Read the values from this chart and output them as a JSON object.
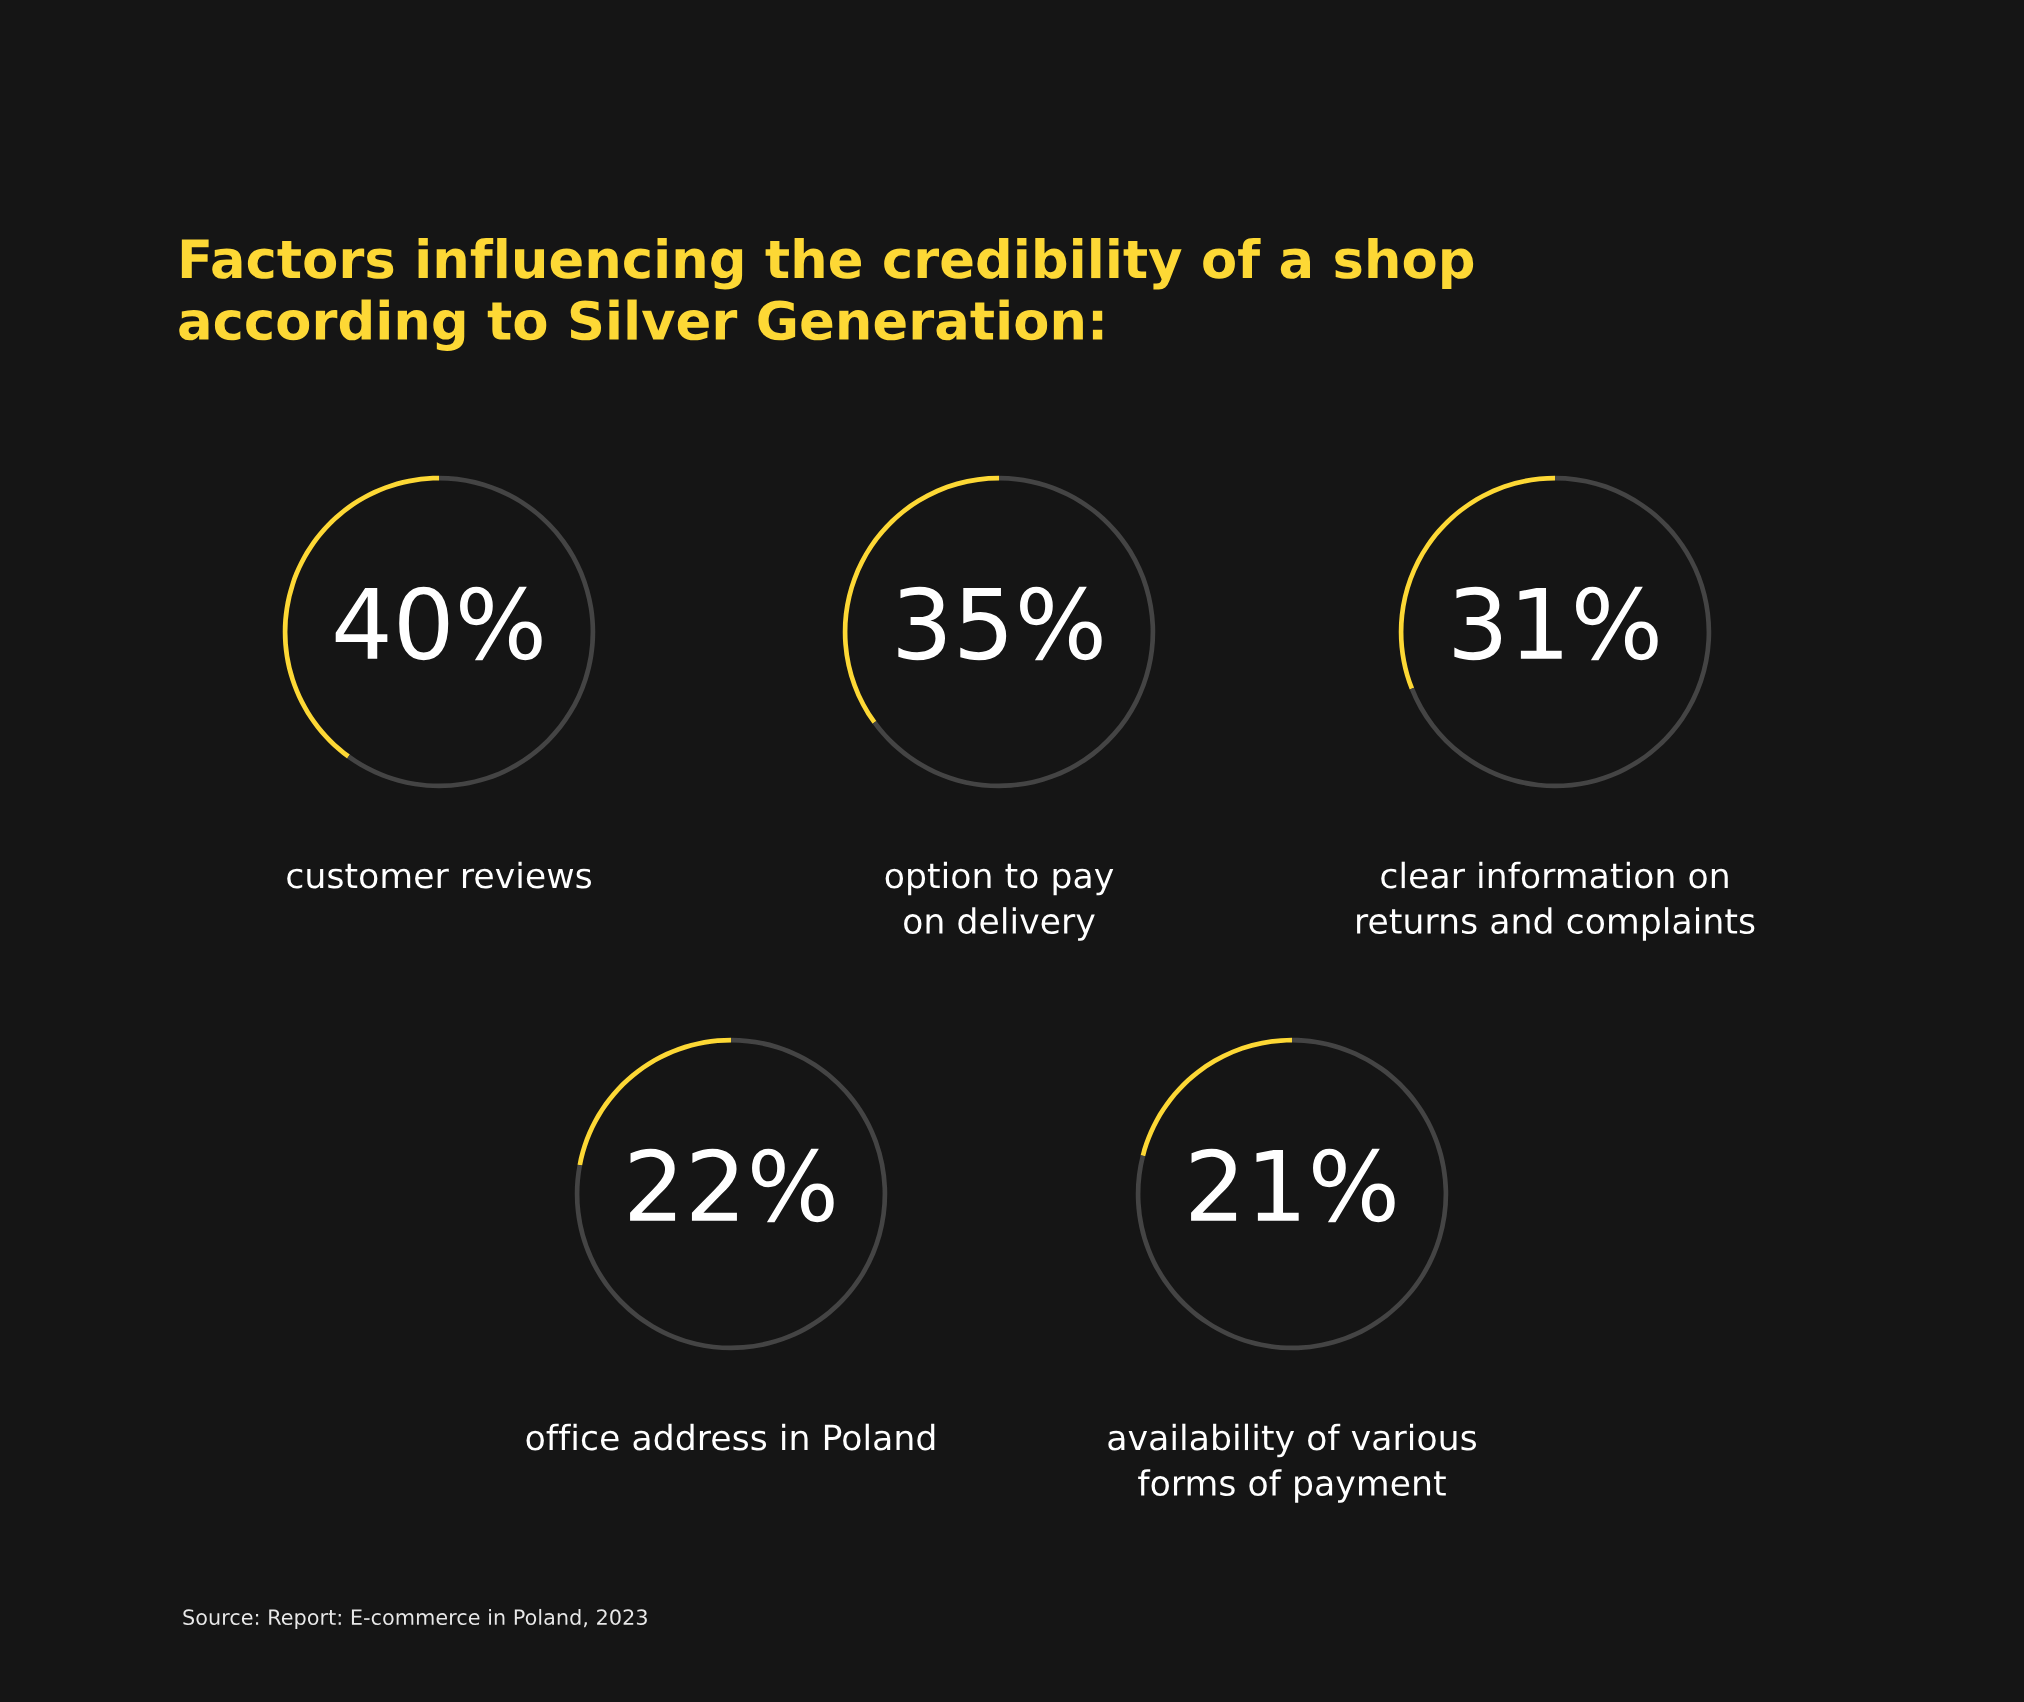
{
  "chart_data": [
    {
      "type": "other",
      "title": "Factors influencing the credibility of a shop\naccording to Silver Generation:",
      "annotations": [
        "Source: Report: E-commerce in Poland, 2023"
      ]
    },
    {
      "type": "donut",
      "xlabel": "customer reviews",
      "categories": [
        null,
        null
      ],
      "values": [
        40,
        60
      ],
      "colors": [
        "#fdd835",
        "#444444"
      ],
      "value_labels": [
        "40%",
        null
      ]
    },
    {
      "type": "donut",
      "xlabel": "option to pay\non delivery",
      "categories": [
        null,
        null
      ],
      "values": [
        35,
        65
      ],
      "colors": [
        "#fdd835",
        "#444444"
      ],
      "value_labels": [
        "35%",
        null
      ]
    },
    {
      "type": "donut",
      "xlabel": "clear information on\nreturns and complaints",
      "categories": [
        null,
        null
      ],
      "values": [
        31,
        69
      ],
      "colors": [
        "#fdd835",
        "#444444"
      ],
      "value_labels": [
        "31%",
        null
      ]
    },
    {
      "type": "donut",
      "xlabel": "office address in Poland",
      "categories": [
        null,
        null
      ],
      "values": [
        22,
        78
      ],
      "colors": [
        "#fdd835",
        "#444444"
      ],
      "value_labels": [
        "22%",
        null
      ]
    },
    {
      "type": "donut",
      "xlabel": "availability of various\nforms of payment",
      "categories": [
        null,
        null
      ],
      "values": [
        21,
        79
      ],
      "colors": [
        "#fdd835",
        "#444444"
      ],
      "value_labels": [
        "21%",
        null
      ]
    }
  ]
}
